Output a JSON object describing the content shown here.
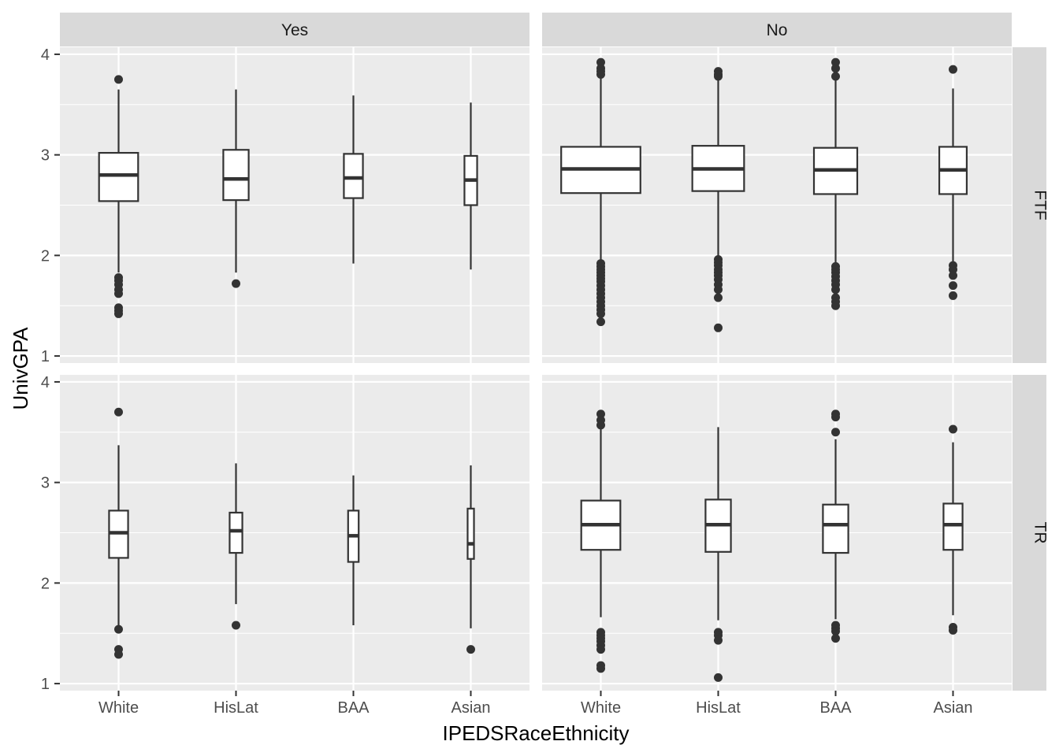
{
  "chart_data": {
    "type": "boxplot",
    "xlabel": "IPEDSRaceEthnicity",
    "ylabel": "UnivGPA",
    "categories": [
      "White",
      "HisLat",
      "BAA",
      "Asian"
    ],
    "column_facets": [
      "Yes",
      "No"
    ],
    "row_facets": [
      "FTF",
      "TR"
    ],
    "y_ticks": [
      1,
      2,
      3,
      4
    ],
    "y_tick_labels": [
      "1",
      "2",
      "3",
      "4"
    ],
    "ylim": [
      0.93,
      4.07
    ],
    "colors": {
      "panel_bg": "#ebebeb",
      "grid": "#ffffff",
      "strip_bg": "#d9d9d9",
      "box_fill": "#ffffff",
      "box_line": "#333333",
      "outlier": "#333333"
    },
    "panels": [
      {
        "column": "Yes",
        "row": "FTF",
        "boxes": [
          {
            "category": "White",
            "relative_width": 0.37,
            "lower_whisker": 1.83,
            "q1": 2.54,
            "median": 2.8,
            "q3": 3.02,
            "upper_whisker": 3.65,
            "outliers": [
              3.75,
              1.78,
              1.75,
              1.71,
              1.66,
              1.62,
              1.48,
              1.45,
              1.42
            ]
          },
          {
            "category": "HisLat",
            "relative_width": 0.24,
            "lower_whisker": 1.83,
            "q1": 2.55,
            "median": 2.76,
            "q3": 3.05,
            "upper_whisker": 3.65,
            "outliers": [
              1.72
            ]
          },
          {
            "category": "BAA",
            "relative_width": 0.18,
            "lower_whisker": 1.92,
            "q1": 2.57,
            "median": 2.77,
            "q3": 3.01,
            "upper_whisker": 3.59,
            "outliers": []
          },
          {
            "category": "Asian",
            "relative_width": 0.12,
            "lower_whisker": 1.86,
            "q1": 2.5,
            "median": 2.75,
            "q3": 2.99,
            "upper_whisker": 3.52,
            "outliers": []
          }
        ]
      },
      {
        "column": "No",
        "row": "FTF",
        "boxes": [
          {
            "category": "White",
            "relative_width": 0.75,
            "lower_whisker": 1.95,
            "q1": 2.62,
            "median": 2.86,
            "q3": 3.08,
            "upper_whisker": 3.76,
            "outliers": [
              3.92,
              3.86,
              3.83,
              3.8,
              1.92,
              1.89,
              1.86,
              1.83,
              1.8,
              1.77,
              1.74,
              1.7,
              1.66,
              1.62,
              1.58,
              1.54,
              1.5,
              1.46,
              1.42,
              1.34
            ]
          },
          {
            "category": "HisLat",
            "relative_width": 0.49,
            "lower_whisker": 1.98,
            "q1": 2.64,
            "median": 2.86,
            "q3": 3.09,
            "upper_whisker": 3.76,
            "outliers": [
              3.83,
              3.8,
              3.78,
              1.96,
              1.93,
              1.9,
              1.86,
              1.83,
              1.8,
              1.76,
              1.71,
              1.66,
              1.58,
              1.28
            ]
          },
          {
            "category": "BAA",
            "relative_width": 0.41,
            "lower_whisker": 1.92,
            "q1": 2.61,
            "median": 2.85,
            "q3": 3.07,
            "upper_whisker": 3.76,
            "outliers": [
              3.92,
              3.86,
              3.78,
              1.89,
              1.86,
              1.83,
              1.79,
              1.75,
              1.71,
              1.66,
              1.58,
              1.54,
              1.5
            ]
          },
          {
            "category": "Asian",
            "relative_width": 0.26,
            "lower_whisker": 1.92,
            "q1": 2.61,
            "median": 2.85,
            "q3": 3.08,
            "upper_whisker": 3.66,
            "outliers": [
              3.85,
              1.9,
              1.86,
              1.8,
              1.7,
              1.6
            ]
          }
        ]
      },
      {
        "column": "Yes",
        "row": "TR",
        "boxes": [
          {
            "category": "White",
            "relative_width": 0.18,
            "lower_whisker": 1.56,
            "q1": 2.25,
            "median": 2.5,
            "q3": 2.72,
            "upper_whisker": 3.37,
            "outliers": [
              3.7,
              1.54,
              1.34,
              1.29
            ]
          },
          {
            "category": "HisLat",
            "relative_width": 0.12,
            "lower_whisker": 1.79,
            "q1": 2.3,
            "median": 2.52,
            "q3": 2.7,
            "upper_whisker": 3.19,
            "outliers": [
              1.58
            ]
          },
          {
            "category": "BAA",
            "relative_width": 0.1,
            "lower_whisker": 1.58,
            "q1": 2.21,
            "median": 2.47,
            "q3": 2.72,
            "upper_whisker": 3.07,
            "outliers": []
          },
          {
            "category": "Asian",
            "relative_width": 0.06,
            "lower_whisker": 1.55,
            "q1": 2.24,
            "median": 2.39,
            "q3": 2.74,
            "upper_whisker": 3.17,
            "outliers": [
              1.34
            ]
          }
        ]
      },
      {
        "column": "No",
        "row": "TR",
        "boxes": [
          {
            "category": "White",
            "relative_width": 0.37,
            "lower_whisker": 1.66,
            "q1": 2.33,
            "median": 2.58,
            "q3": 2.82,
            "upper_whisker": 3.54,
            "outliers": [
              3.68,
              3.62,
              3.57,
              1.51,
              1.48,
              1.45,
              1.42,
              1.38,
              1.34,
              1.18,
              1.15
            ]
          },
          {
            "category": "HisLat",
            "relative_width": 0.24,
            "lower_whisker": 1.63,
            "q1": 2.31,
            "median": 2.58,
            "q3": 2.83,
            "upper_whisker": 3.55,
            "outliers": [
              1.51,
              1.48,
              1.43,
              1.06
            ]
          },
          {
            "category": "BAA",
            "relative_width": 0.24,
            "lower_whisker": 1.64,
            "q1": 2.3,
            "median": 2.58,
            "q3": 2.78,
            "upper_whisker": 3.43,
            "outliers": [
              3.68,
              3.65,
              3.5,
              1.58,
              1.55,
              1.52,
              1.45
            ]
          },
          {
            "category": "Asian",
            "relative_width": 0.18,
            "lower_whisker": 1.68,
            "q1": 2.33,
            "median": 2.58,
            "q3": 2.79,
            "upper_whisker": 3.4,
            "outliers": [
              3.53,
              1.56,
              1.53
            ]
          }
        ]
      }
    ]
  }
}
